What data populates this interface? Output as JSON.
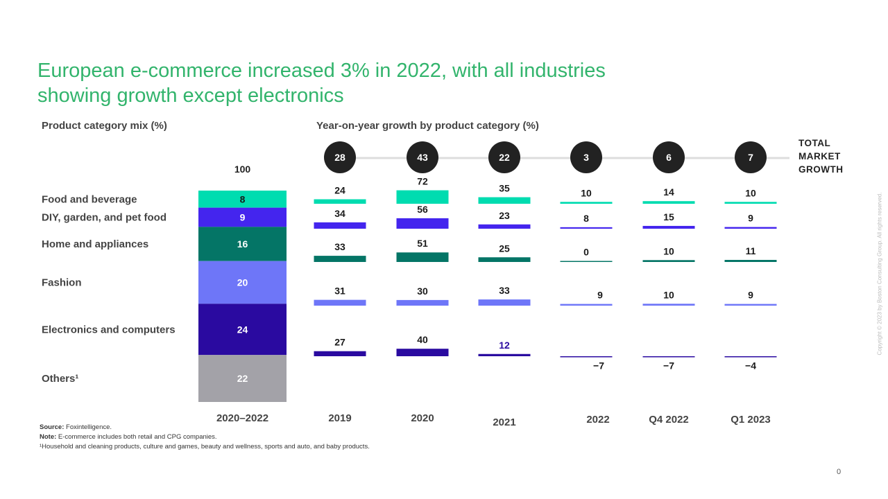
{
  "slide": {
    "title_line1": "European e-commerce increased 3% in 2022, with all industries",
    "title_line2": "showing growth except electronics",
    "page_number": "0",
    "copyright": "Copyright © 2023 by Boston Consulting Group. All rights reserved."
  },
  "footnotes": {
    "source_label": "Source:",
    "source_text": "Foxintelligence.",
    "note_label": "Note:",
    "note_text": "E-commerce includes both retail and CPG companies.",
    "others_note": "¹Household and cleaning products, culture and games, beauty and wellness, sports and auto, and baby products."
  },
  "chart_data": [
    {
      "type": "bar",
      "subtype": "stacked-100",
      "title": "Product category mix (%)",
      "total_label": "100",
      "period": "2020–2022",
      "categories": [
        "Food and beverage",
        "DIY, garden, and pet food",
        "Home and appliances",
        "Fashion",
        "Electronics and computers",
        "Others¹"
      ],
      "values": [
        8,
        9,
        16,
        20,
        24,
        22
      ],
      "value_labels": [
        "8",
        "9",
        "16",
        "20",
        "24",
        "22"
      ],
      "colors": [
        "#00dcb0",
        "#4425ee",
        "#047566",
        "#6e76f8",
        "#2a0aa0",
        "#a3a2a8"
      ]
    },
    {
      "type": "bar",
      "title": "Year-on-year growth by product category (%)",
      "periods": [
        "2019",
        "2020",
        "2021",
        "2022",
        "Q4 2022",
        "Q1 2023"
      ],
      "total_label_lines": [
        "TOTAL",
        "MARKET",
        "GROWTH"
      ],
      "total_market_growth": [
        28,
        43,
        22,
        3,
        6,
        7
      ],
      "series": [
        {
          "name": "Food and beverage",
          "values": [
            24,
            72,
            35,
            10,
            14,
            10
          ],
          "labels": [
            "24",
            "72",
            "35",
            "10",
            "14",
            "10"
          ]
        },
        {
          "name": "DIY, garden, and pet food",
          "values": [
            34,
            56,
            23,
            8,
            15,
            9
          ],
          "labels": [
            "34",
            "56",
            "23",
            "8",
            "15",
            "9"
          ]
        },
        {
          "name": "Home and appliances",
          "values": [
            33,
            51,
            25,
            0,
            10,
            11
          ],
          "labels": [
            "33",
            "51",
            "25",
            "0",
            "10",
            "11"
          ]
        },
        {
          "name": "Fashion",
          "values": [
            31,
            30,
            33,
            9,
            10,
            9
          ],
          "labels": [
            "31",
            "30",
            "33",
            "9",
            "10",
            "9"
          ]
        },
        {
          "name": "Electronics and computers",
          "values": [
            27,
            40,
            12,
            -7,
            -7,
            -4
          ],
          "labels": [
            "27",
            "40",
            "12",
            "−7",
            "−7",
            "−4"
          ]
        }
      ]
    }
  ]
}
